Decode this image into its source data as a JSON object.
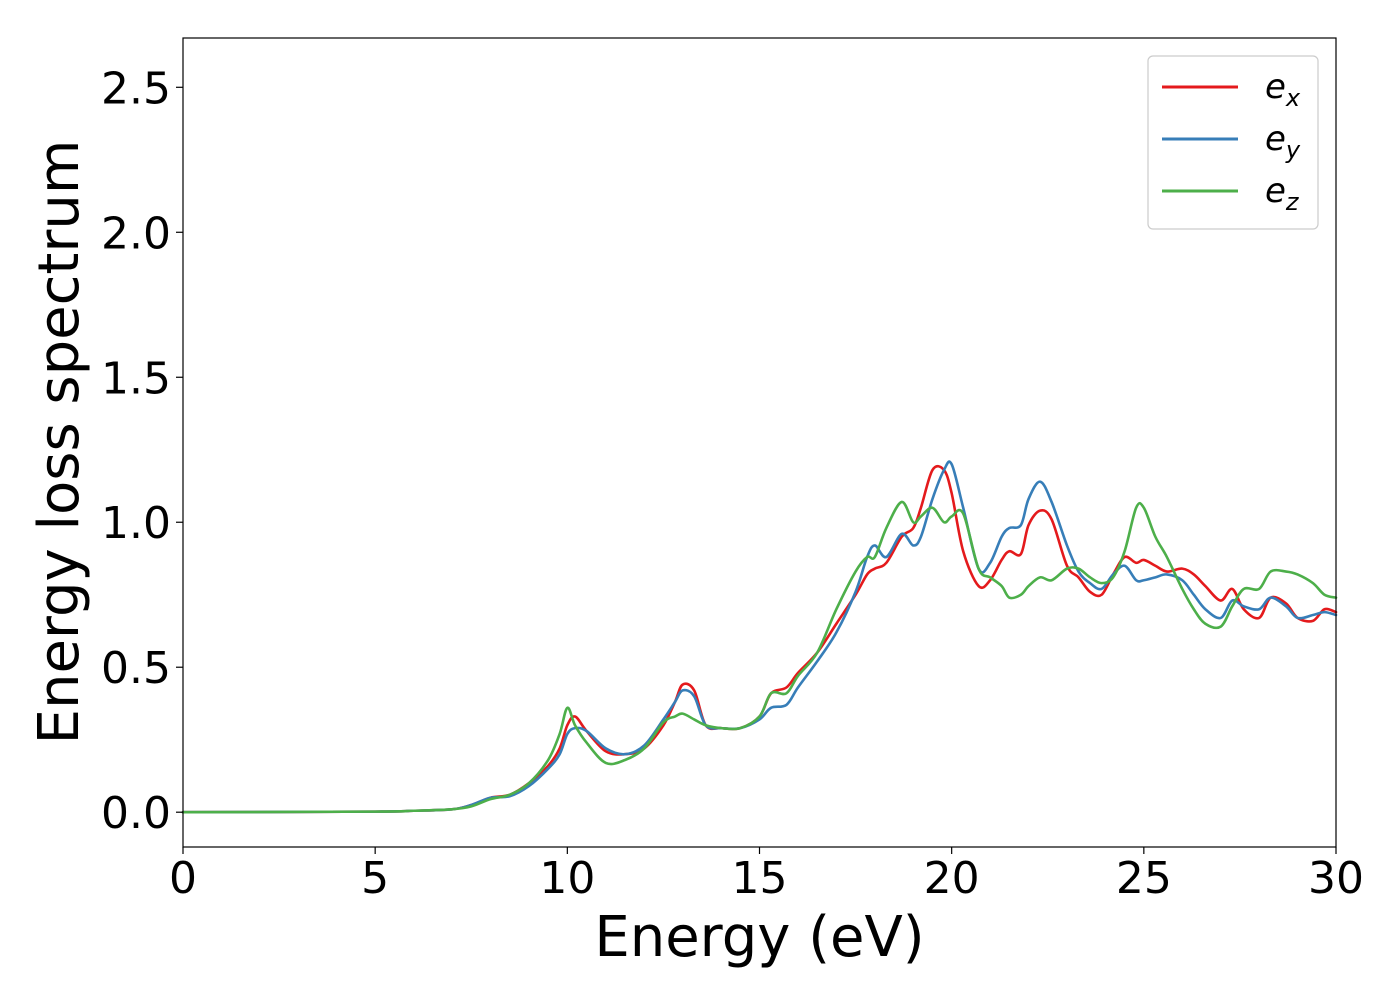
{
  "chart_data": {
    "type": "line",
    "title": "",
    "xlabel": "Energy (eV)",
    "ylabel": "Energy loss spectrum",
    "xlim": [
      0,
      30
    ],
    "ylim": [
      -0.12,
      2.67
    ],
    "xticks": [
      0,
      5,
      10,
      15,
      20,
      25,
      30
    ],
    "xtick_labels": [
      "0",
      "5",
      "10",
      "15",
      "20",
      "25",
      "30"
    ],
    "yticks": [
      0.0,
      0.5,
      1.0,
      1.5,
      2.0,
      2.5
    ],
    "ytick_labels": [
      "0.0",
      "0.5",
      "1.0",
      "1.5",
      "2.0",
      "2.5"
    ],
    "grid": false,
    "legend": {
      "placement": "top-right"
    },
    "series": [
      {
        "name": "e_x",
        "label_base": "e",
        "label_sub": "x",
        "color": "#e41a1c",
        "x": [
          0,
          5,
          6,
          7,
          7.5,
          8,
          8.5,
          9,
          9.5,
          9.8,
          10,
          10.2,
          10.5,
          11,
          11.5,
          12,
          12.5,
          12.8,
          13,
          13.3,
          13.6,
          14,
          14.5,
          15,
          15.3,
          15.7,
          16,
          16.5,
          17,
          17.5,
          17.8,
          18,
          18.3,
          18.7,
          19,
          19.2,
          19.5,
          19.8,
          20,
          20.3,
          20.7,
          21,
          21.3,
          21.5,
          21.8,
          22,
          22.3,
          22.6,
          23,
          23.3,
          23.6,
          23.9,
          24.2,
          24.5,
          24.8,
          25,
          25.3,
          25.6,
          26,
          26.3,
          26.6,
          27,
          27.3,
          27.6,
          28,
          28.3,
          28.7,
          29,
          29.4,
          29.7,
          30
        ],
        "y": [
          0.0,
          0.002,
          0.005,
          0.01,
          0.025,
          0.05,
          0.06,
          0.1,
          0.16,
          0.22,
          0.3,
          0.33,
          0.28,
          0.21,
          0.2,
          0.22,
          0.3,
          0.38,
          0.44,
          0.42,
          0.3,
          0.29,
          0.29,
          0.33,
          0.41,
          0.43,
          0.48,
          0.55,
          0.65,
          0.75,
          0.82,
          0.84,
          0.86,
          0.95,
          0.98,
          1.05,
          1.18,
          1.18,
          1.1,
          0.9,
          0.78,
          0.8,
          0.87,
          0.9,
          0.89,
          0.99,
          1.04,
          1.01,
          0.85,
          0.81,
          0.76,
          0.75,
          0.82,
          0.88,
          0.86,
          0.87,
          0.85,
          0.83,
          0.84,
          0.82,
          0.78,
          0.73,
          0.77,
          0.7,
          0.67,
          0.74,
          0.72,
          0.67,
          0.66,
          0.7,
          0.69
        ]
      },
      {
        "name": "e_y",
        "label_base": "e",
        "label_sub": "y",
        "color": "#377eb8",
        "x": [
          0,
          5,
          6,
          7,
          7.5,
          8,
          8.5,
          9,
          9.5,
          9.8,
          10,
          10.2,
          10.5,
          11,
          11.5,
          12,
          12.5,
          12.8,
          13,
          13.3,
          13.6,
          14,
          14.5,
          15,
          15.3,
          15.7,
          16,
          16.5,
          17,
          17.5,
          17.8,
          18,
          18.3,
          18.7,
          19,
          19.2,
          19.5,
          19.8,
          20,
          20.3,
          20.7,
          21,
          21.3,
          21.5,
          21.8,
          22,
          22.3,
          22.6,
          23,
          23.3,
          23.6,
          23.9,
          24.2,
          24.5,
          24.8,
          25,
          25.3,
          25.6,
          26,
          26.3,
          26.6,
          27,
          27.3,
          27.6,
          28,
          28.3,
          28.7,
          29,
          29.4,
          29.7,
          30
        ],
        "y": [
          0.0,
          0.002,
          0.005,
          0.01,
          0.025,
          0.05,
          0.055,
          0.09,
          0.15,
          0.2,
          0.27,
          0.29,
          0.28,
          0.22,
          0.2,
          0.23,
          0.32,
          0.38,
          0.42,
          0.4,
          0.3,
          0.29,
          0.29,
          0.32,
          0.36,
          0.37,
          0.43,
          0.52,
          0.62,
          0.76,
          0.88,
          0.92,
          0.88,
          0.96,
          0.92,
          0.95,
          1.08,
          1.18,
          1.2,
          1.05,
          0.84,
          0.86,
          0.95,
          0.98,
          0.99,
          1.08,
          1.14,
          1.07,
          0.92,
          0.83,
          0.79,
          0.77,
          0.82,
          0.85,
          0.8,
          0.8,
          0.81,
          0.82,
          0.8,
          0.75,
          0.7,
          0.67,
          0.73,
          0.71,
          0.7,
          0.74,
          0.71,
          0.67,
          0.68,
          0.69,
          0.68
        ]
      },
      {
        "name": "e_z",
        "label_base": "e",
        "label_sub": "z",
        "color": "#4daf4a",
        "x": [
          0,
          5,
          6,
          7,
          7.5,
          8,
          8.5,
          9,
          9.5,
          9.8,
          10,
          10.2,
          10.5,
          11,
          11.5,
          12,
          12.5,
          12.8,
          13,
          13.3,
          13.6,
          14,
          14.5,
          15,
          15.3,
          15.7,
          16,
          16.5,
          17,
          17.5,
          17.8,
          18,
          18.3,
          18.7,
          19,
          19.2,
          19.5,
          19.8,
          20,
          20.3,
          20.7,
          21,
          21.3,
          21.5,
          21.8,
          22,
          22.3,
          22.6,
          23,
          23.3,
          23.6,
          23.9,
          24.2,
          24.5,
          24.8,
          25,
          25.3,
          25.6,
          26,
          26.3,
          26.6,
          27,
          27.3,
          27.6,
          28,
          28.3,
          28.7,
          29,
          29.4,
          29.7,
          30
        ],
        "y": [
          0.0,
          0.002,
          0.005,
          0.01,
          0.02,
          0.045,
          0.06,
          0.1,
          0.18,
          0.27,
          0.36,
          0.3,
          0.24,
          0.17,
          0.18,
          0.22,
          0.31,
          0.33,
          0.34,
          0.32,
          0.3,
          0.29,
          0.29,
          0.33,
          0.41,
          0.41,
          0.47,
          0.55,
          0.7,
          0.83,
          0.88,
          0.88,
          0.98,
          1.07,
          1.0,
          1.02,
          1.05,
          1.0,
          1.02,
          1.03,
          0.84,
          0.81,
          0.78,
          0.74,
          0.75,
          0.78,
          0.81,
          0.8,
          0.84,
          0.84,
          0.81,
          0.79,
          0.81,
          0.9,
          1.05,
          1.05,
          0.95,
          0.88,
          0.77,
          0.7,
          0.65,
          0.64,
          0.71,
          0.77,
          0.77,
          0.83,
          0.83,
          0.82,
          0.79,
          0.75,
          0.74
        ]
      }
    ]
  }
}
